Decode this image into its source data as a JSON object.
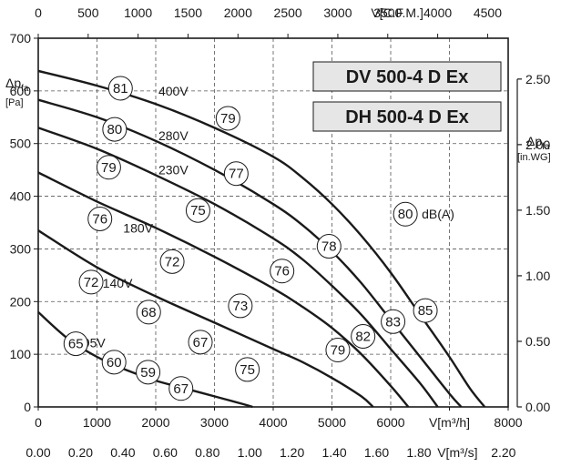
{
  "chart_data": {
    "type": "line",
    "models": [
      "DV 500-4 D Ex",
      "DH 500-4 D Ex"
    ],
    "x_bottom": {
      "label": "V[m³/h]",
      "range": [
        0,
        8000
      ],
      "ticks": [
        "0",
        "1000",
        "2000",
        "3000",
        "4000",
        "5000",
        "6000",
        "7000",
        "8000"
      ],
      "tick_values": [
        0,
        1000,
        2000,
        3000,
        4000,
        5000,
        6000,
        7000,
        8000
      ]
    },
    "x_bottom2": {
      "label": "V[m³/s]",
      "ticks": [
        "0.00",
        "0.20",
        "0.40",
        "0.60",
        "0.80",
        "1.00",
        "1.20",
        "1.40",
        "1.60",
        "1.80",
        "2.00",
        "2.20"
      ],
      "tick_values_m3h": [
        0,
        720,
        1440,
        2160,
        2880,
        3600,
        4320,
        5040,
        5760,
        6480,
        7200,
        7920
      ]
    },
    "x_top": {
      "label": "V[C.F.M.]",
      "ticks": [
        "0",
        "500",
        "1000",
        "1500",
        "2000",
        "2500",
        "3000",
        "3500",
        "4000",
        "4500"
      ],
      "tick_values_m3h": [
        0,
        850,
        1700,
        2550,
        3400,
        4250,
        5100,
        5950,
        6800,
        7650
      ]
    },
    "y_left": {
      "label_main": "Δp",
      "label_sub": "fa",
      "label_unit": "[Pa]",
      "range": [
        0,
        700
      ],
      "ticks": [
        "0",
        "100",
        "200",
        "300",
        "400",
        "500",
        "600",
        "700"
      ],
      "tick_values": [
        0,
        100,
        200,
        300,
        400,
        500,
        600,
        700
      ]
    },
    "y_right": {
      "label_main": "Δp",
      "label_sub": "fa",
      "label_unit": "[in.WG]",
      "ticks": [
        "0.00",
        "0.50",
        "1.00",
        "1.50",
        "2.00",
        "2.50"
      ],
      "tick_values_pa": [
        0,
        124.5,
        249,
        373.5,
        498,
        622.5
      ]
    },
    "series": [
      {
        "name": "400V",
        "x": [
          0,
          1000,
          2000,
          3000,
          4000,
          4500,
          5000,
          5500,
          6000,
          6500,
          7000,
          7350,
          7600
        ],
        "y": [
          638,
          610,
          575,
          530,
          475,
          435,
          385,
          325,
          255,
          175,
          95,
          35,
          0
        ]
      },
      {
        "name": "280V",
        "x": [
          0,
          1000,
          2000,
          3000,
          4000,
          4500,
          5000,
          5500,
          6000,
          6500,
          7000,
          7200
        ],
        "y": [
          583,
          550,
          505,
          450,
          385,
          345,
          295,
          235,
          165,
          95,
          25,
          0
        ]
      },
      {
        "name": "230V",
        "x": [
          0,
          1000,
          2000,
          3000,
          4000,
          4500,
          5000,
          5500,
          6000,
          6500,
          6800
        ],
        "y": [
          530,
          490,
          440,
          385,
          320,
          280,
          230,
          175,
          110,
          45,
          0
        ]
      },
      {
        "name": "180V",
        "x": [
          0,
          1000,
          2000,
          3000,
          4000,
          4500,
          5000,
          5500,
          6000,
          6300
        ],
        "y": [
          445,
          390,
          340,
          285,
          225,
          190,
          150,
          100,
          40,
          0
        ]
      },
      {
        "name": "140V",
        "x": [
          0,
          1000,
          2000,
          3000,
          4000,
          4500,
          5000,
          5500,
          5700
        ],
        "y": [
          335,
          265,
          210,
          160,
          110,
          85,
          55,
          20,
          0
        ]
      },
      {
        "name": "95V",
        "x": [
          0,
          500,
          1000,
          1500,
          2000,
          2500,
          3000,
          3500,
          3650
        ],
        "y": [
          180,
          130,
          95,
          70,
          50,
          35,
          20,
          5,
          0
        ]
      }
    ],
    "voltage_labels": [
      {
        "text": "400V",
        "x": 2300,
        "y": 600
      },
      {
        "text": "280V",
        "x": 2300,
        "y": 515
      },
      {
        "text": "230V",
        "x": 2300,
        "y": 450
      },
      {
        "text": "180V",
        "x": 1700,
        "y": 340
      },
      {
        "text": "140V",
        "x": 1350,
        "y": 235
      },
      {
        "text": "95V",
        "x": 950,
        "y": 122
      }
    ],
    "sound_levels": [
      {
        "value": "81",
        "x": 1400,
        "y": 605
      },
      {
        "value": "80",
        "x": 1300,
        "y": 527
      },
      {
        "value": "79",
        "x": 1200,
        "y": 455
      },
      {
        "value": "76",
        "x": 1050,
        "y": 357
      },
      {
        "value": "72",
        "x": 900,
        "y": 237
      },
      {
        "value": "65",
        "x": 640,
        "y": 120
      },
      {
        "value": "79",
        "x": 3230,
        "y": 548
      },
      {
        "value": "77",
        "x": 3370,
        "y": 443
      },
      {
        "value": "75",
        "x": 2720,
        "y": 373
      },
      {
        "value": "72",
        "x": 2280,
        "y": 276
      },
      {
        "value": "68",
        "x": 1880,
        "y": 180
      },
      {
        "value": "60",
        "x": 1290,
        "y": 85
      },
      {
        "value": "78",
        "x": 4950,
        "y": 305
      },
      {
        "value": "76",
        "x": 4150,
        "y": 258
      },
      {
        "value": "73",
        "x": 3440,
        "y": 192
      },
      {
        "value": "67",
        "x": 2760,
        "y": 123
      },
      {
        "value": "59",
        "x": 1870,
        "y": 66
      },
      {
        "value": "80",
        "x": 6250,
        "y": 366
      },
      {
        "value": "83",
        "x": 6040,
        "y": 162
      },
      {
        "value": "82",
        "x": 5530,
        "y": 134
      },
      {
        "value": "79",
        "x": 5100,
        "y": 108
      },
      {
        "value": "75",
        "x": 3560,
        "y": 71
      },
      {
        "value": "67",
        "x": 2430,
        "y": 35
      },
      {
        "value": "85",
        "x": 6590,
        "y": 183
      }
    ],
    "sound_unit": "dB(A)",
    "grid": true,
    "legend_position": "top-right"
  }
}
